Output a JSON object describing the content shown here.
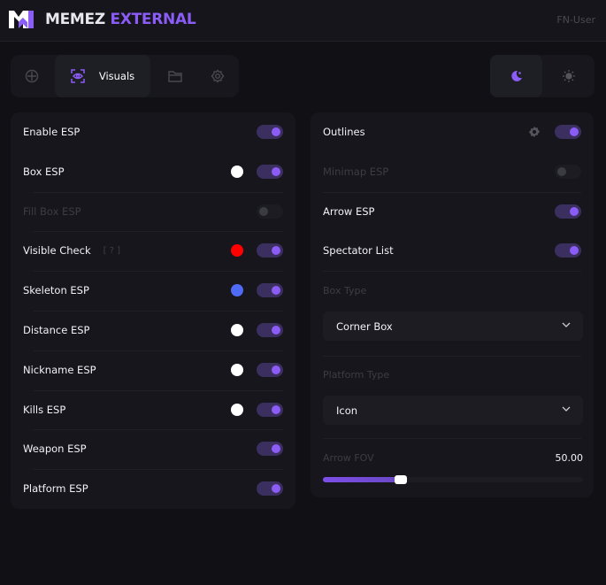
{
  "app": {
    "title_a": "MEMEZ",
    "title_b": "EXTERNAL",
    "user": "FN-User",
    "accent": "#8b5cf6"
  },
  "tabs": [
    {
      "icon": "crosshair-icon",
      "label": ""
    },
    {
      "icon": "eye-scan-icon",
      "label": "Visuals",
      "active": true
    },
    {
      "icon": "folder-icon",
      "label": ""
    },
    {
      "icon": "gear-icon",
      "label": ""
    }
  ],
  "theme": [
    {
      "icon": "moon-icon",
      "active": true
    },
    {
      "icon": "sun-icon"
    }
  ],
  "left": [
    {
      "label": "Enable ESP",
      "on": true
    },
    {
      "label": "Box ESP",
      "on": true,
      "color": "#ffffff"
    },
    {
      "label": "Fill Box ESP",
      "on": false,
      "disabled": true
    },
    {
      "label": "Visible Check",
      "hint": "[ ? ]",
      "on": true,
      "color": "#ff0000"
    },
    {
      "label": "Skeleton ESP",
      "on": true,
      "color": "#4f6bf5"
    },
    {
      "label": "Distance ESP",
      "on": true,
      "color": "#ffffff"
    },
    {
      "label": "Nickname ESP",
      "on": true,
      "color": "#ffffff"
    },
    {
      "label": "Kills ESP",
      "on": true,
      "color": "#ffffff"
    },
    {
      "label": "Weapon ESP",
      "on": true
    },
    {
      "label": "Platform ESP",
      "on": true
    }
  ],
  "right": {
    "toggles": [
      {
        "label": "Outlines",
        "on": true,
        "gear": true
      },
      {
        "label": "Minimap ESP",
        "on": false,
        "disabled": true
      },
      {
        "label": "Arrow ESP",
        "on": true
      },
      {
        "label": "Spectator List",
        "on": true
      }
    ],
    "box_type": {
      "label": "Box Type",
      "value": "Corner Box"
    },
    "platform_type": {
      "label": "Platform Type",
      "value": "Icon"
    },
    "arrow_fov": {
      "label": "Arrow FOV",
      "value": "50.00",
      "fill_fraction": 0.3
    }
  }
}
